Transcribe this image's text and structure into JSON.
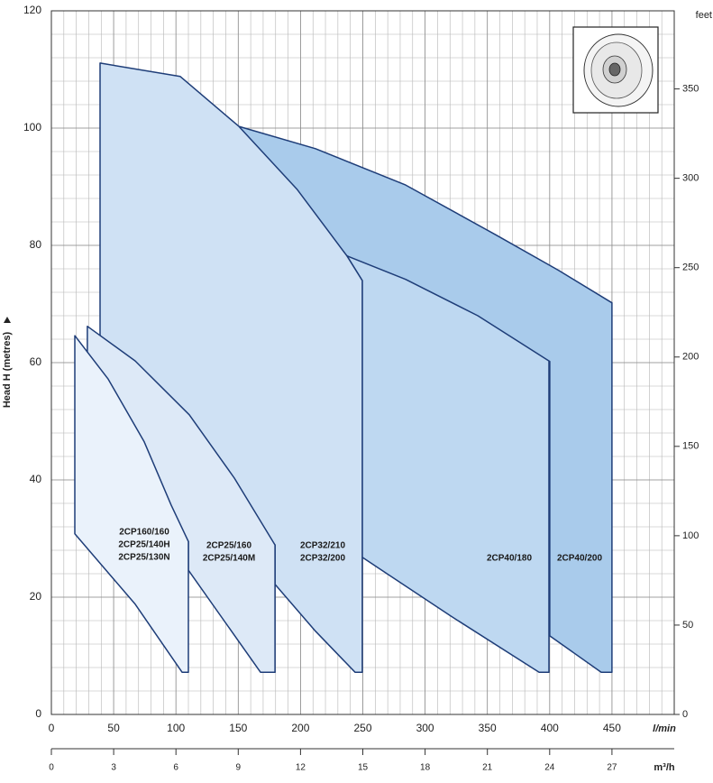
{
  "chart_data": {
    "type": "area",
    "ylabel": "Head H (metres)",
    "xlabel": "l/min",
    "x2label": "m³/h",
    "y2label": "feet",
    "xlim": [
      0,
      500
    ],
    "xticks": [
      0,
      50,
      100,
      150,
      200,
      250,
      300,
      350,
      400,
      450
    ],
    "ylim": [
      0,
      120
    ],
    "yticks": [
      0,
      20,
      40,
      60,
      80,
      100,
      120
    ],
    "y2lim": [
      0,
      393.7
    ],
    "y2ticks": [
      0,
      50,
      100,
      150,
      200,
      250,
      300,
      350
    ],
    "x2lim": [
      0,
      30
    ],
    "x2ticks": [
      0,
      3,
      6,
      9,
      12,
      15,
      18,
      21,
      24,
      27
    ],
    "grid": true,
    "series": [
      {
        "labels": [
          "2CP40/200"
        ],
        "color": "#a9cbeb",
        "x": [
          150.5,
          212,
          284.4,
          356.7,
          407.4,
          450,
          450,
          441.4,
          400.1,
          400.1,
          237.3
        ],
        "values": [
          100.3,
          96.5,
          90.3,
          81.8,
          75.7,
          70.2,
          7.2,
          7.2,
          13.4,
          60.2,
          78.2
        ]
      },
      {
        "labels": [
          "2CP40/180"
        ],
        "color": "#bed8f1",
        "x": [
          237.3,
          284.4,
          342.3,
          399.4,
          399.4,
          391.5,
          320.5,
          249.6,
          249.6
        ],
        "values": [
          78.2,
          74.2,
          68.0,
          60.3,
          7.2,
          7.2,
          16.8,
          26.8,
          74.0
        ]
      },
      {
        "labels": [
          "2CP32/210",
          "2CP32/200"
        ],
        "color": "#cfe1f4",
        "x": [
          39.1,
          103.5,
          150.5,
          197.5,
          237.3,
          249.6,
          249.6,
          243.8,
          212,
          179.5,
          179.5,
          39.1
        ],
        "values": [
          111.1,
          108.8,
          100.3,
          89.5,
          78.2,
          74.0,
          7.2,
          7.2,
          14.2,
          22.2,
          28.9,
          64.2
        ]
      },
      {
        "labels": [
          "2CP25/160",
          "2CP25/140M"
        ],
        "color": "#dde9f7",
        "x": [
          28.9,
          67.3,
          110.7,
          146.9,
          179.5,
          179.5,
          167.9,
          110,
          110,
          28.9
        ],
        "values": [
          66.2,
          60.3,
          51.1,
          40.3,
          28.9,
          7.2,
          7.2,
          24.6,
          29.5,
          61.5
        ]
      },
      {
        "labels": [
          "2CP160/160",
          "2CP25/140H",
          "2CP25/130N"
        ],
        "color": "#eaf2fb",
        "x": [
          18.8,
          45.6,
          74.5,
          96.2,
          110,
          110,
          104.9,
          67.3,
          18.8
        ],
        "values": [
          64.6,
          57.2,
          46.5,
          35.7,
          29.5,
          7.2,
          7.2,
          18.8,
          30.8
        ]
      }
    ]
  }
}
